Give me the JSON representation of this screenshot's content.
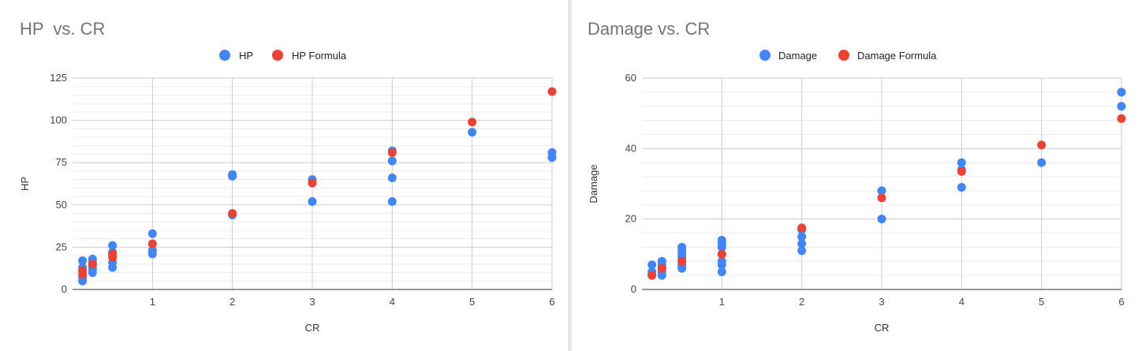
{
  "chart_data": [
    {
      "type": "scatter",
      "title": "HP  vs. CR",
      "xlabel": "CR",
      "ylabel": "HP",
      "xlim": [
        0,
        6
      ],
      "ylim": [
        0,
        125
      ],
      "xticks": [
        1,
        2,
        3,
        4,
        5,
        6
      ],
      "yticks": [
        0,
        25,
        50,
        75,
        100,
        125
      ],
      "grid": true,
      "legend_position": "top",
      "series": [
        {
          "name": "HP",
          "color": "#4285f4",
          "points": [
            [
              0.125,
              5
            ],
            [
              0.125,
              7
            ],
            [
              0.125,
              11
            ],
            [
              0.125,
              13
            ],
            [
              0.125,
              17
            ],
            [
              0.25,
              10
            ],
            [
              0.25,
              12
            ],
            [
              0.25,
              14
            ],
            [
              0.25,
              16
            ],
            [
              0.25,
              18
            ],
            [
              0.5,
              13
            ],
            [
              0.5,
              16
            ],
            [
              0.5,
              20
            ],
            [
              0.5,
              22
            ],
            [
              0.5,
              26
            ],
            [
              1,
              21
            ],
            [
              1,
              23
            ],
            [
              1,
              27
            ],
            [
              1,
              33
            ],
            [
              2,
              44
            ],
            [
              2,
              67
            ],
            [
              2,
              68
            ],
            [
              3,
              52
            ],
            [
              3,
              63
            ],
            [
              3,
              65
            ],
            [
              4,
              52
            ],
            [
              4,
              66
            ],
            [
              4,
              76
            ],
            [
              4,
              82
            ],
            [
              5,
              93
            ],
            [
              6,
              78
            ],
            [
              6,
              81
            ]
          ]
        },
        {
          "name": "HP Formula",
          "color": "#ea4335",
          "points": [
            [
              0.125,
              9
            ],
            [
              0.125,
              11
            ],
            [
              0.25,
              15
            ],
            [
              0.5,
              19
            ],
            [
              0.5,
              21
            ],
            [
              1,
              27
            ],
            [
              2,
              45
            ],
            [
              3,
              63
            ],
            [
              4,
              81
            ],
            [
              5,
              99
            ],
            [
              6,
              117
            ]
          ]
        }
      ]
    },
    {
      "type": "scatter",
      "title": "Damage vs. CR",
      "xlabel": "CR",
      "ylabel": "Damage",
      "xlim": [
        0,
        6
      ],
      "ylim": [
        0,
        60
      ],
      "xticks": [
        1,
        2,
        3,
        4,
        5,
        6
      ],
      "yticks": [
        0,
        20,
        40,
        60
      ],
      "grid": true,
      "legend_position": "top",
      "series": [
        {
          "name": "Damage",
          "color": "#4285f4",
          "points": [
            [
              0.125,
              4
            ],
            [
              0.125,
              5
            ],
            [
              0.125,
              7
            ],
            [
              0.25,
              4
            ],
            [
              0.25,
              5
            ],
            [
              0.25,
              6
            ],
            [
              0.25,
              7
            ],
            [
              0.25,
              8
            ],
            [
              0.5,
              6
            ],
            [
              0.5,
              7
            ],
            [
              0.5,
              8
            ],
            [
              0.5,
              9
            ],
            [
              0.5,
              10
            ],
            [
              0.5,
              11
            ],
            [
              0.5,
              12
            ],
            [
              1,
              5
            ],
            [
              1,
              7
            ],
            [
              1,
              8
            ],
            [
              1,
              10
            ],
            [
              1,
              12
            ],
            [
              1,
              13
            ],
            [
              1,
              14
            ],
            [
              2,
              11
            ],
            [
              2,
              13
            ],
            [
              2,
              15
            ],
            [
              2,
              17
            ],
            [
              3,
              20
            ],
            [
              3,
              28
            ],
            [
              4,
              29
            ],
            [
              4,
              34
            ],
            [
              4,
              36
            ],
            [
              5,
              36
            ],
            [
              6,
              52
            ],
            [
              6,
              56
            ]
          ]
        },
        {
          "name": "Damage Formula",
          "color": "#ea4335",
          "points": [
            [
              0.125,
              4
            ],
            [
              0.25,
              6
            ],
            [
              0.5,
              8
            ],
            [
              1,
              10
            ],
            [
              2,
              17.5
            ],
            [
              3,
              26
            ],
            [
              4,
              33.5
            ],
            [
              5,
              41
            ],
            [
              6,
              48.5
            ]
          ]
        }
      ]
    }
  ]
}
